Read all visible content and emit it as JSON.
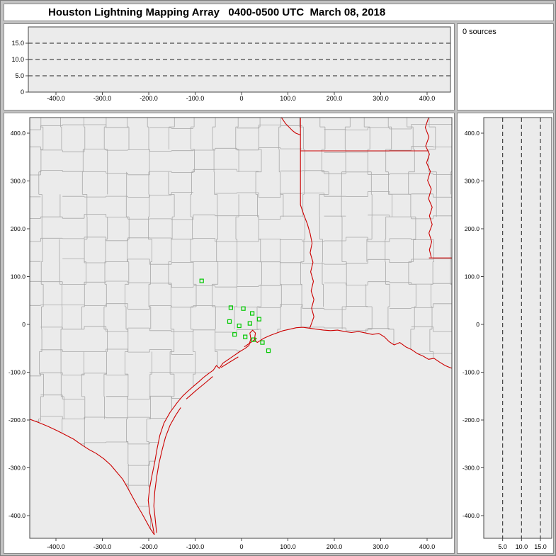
{
  "window": {
    "title": "Houston Lightning Mapping Array   0400-0500 UTC  March 08, 2018"
  },
  "panels": {
    "sources_counter": "0 sources"
  },
  "colors": {
    "window_bg": "#c2c2c2",
    "panel_bg": "#ffffff",
    "plot_bg": "#ebebeb",
    "axis": "#444444",
    "dash_line": "#222222",
    "county_line": "#a8a8a8",
    "state_line": "#cc0000",
    "station": "#00c800"
  },
  "chart_data": [
    {
      "id": "altitude_vs_ew",
      "type": "scatter",
      "title": "Altitude (km) vs East-West distance (km)",
      "x_ticks": [
        -400,
        -300,
        -200,
        -100,
        0,
        100,
        200,
        300,
        400
      ],
      "x_tick_labels": [
        "-400.0",
        "-300.0",
        "-200.0",
        "-100.0",
        "0",
        "100.0",
        "200.0",
        "300.0",
        "400.0"
      ],
      "x_range": [
        -456,
        452
      ],
      "y_ticks": [
        0,
        5,
        10,
        15
      ],
      "y_tick_labels": [
        "0",
        "5.0",
        "10.0",
        "15.0"
      ],
      "y_range": [
        0,
        20
      ],
      "dashed_gridlines_y": [
        5,
        10,
        15
      ],
      "points": []
    },
    {
      "id": "plan_view",
      "type": "scatter",
      "title": "Plan view map, km east-west vs km north-south",
      "x_ticks": [
        -400,
        -300,
        -200,
        -100,
        0,
        100,
        200,
        300,
        400
      ],
      "x_tick_labels": [
        "-400.0",
        "-300.0",
        "-200.0",
        "-100.0",
        "0",
        "100.0",
        "200.0",
        "300.0",
        "400.0"
      ],
      "x_range": [
        -456,
        452
      ],
      "y_ticks": [
        400,
        300,
        200,
        100,
        0,
        -100,
        -200,
        -300,
        -400
      ],
      "y_tick_labels": [
        "400.0",
        "300.0",
        "200.0",
        "100.0",
        "0",
        "-100.0",
        "-200.0",
        "-300.0",
        "-400.0"
      ],
      "y_range": [
        -447,
        432
      ],
      "map_layers": {
        "county_boundaries_color": "#a8a8a8",
        "state_borders_and_coast_color": "#cc0000"
      },
      "station_markers": {
        "shape": "open-square",
        "color": "#00c800",
        "points": [
          [
            -86,
            91
          ],
          [
            -23,
            35
          ],
          [
            4,
            33
          ],
          [
            23,
            23
          ],
          [
            -26,
            6
          ],
          [
            -5,
            -3
          ],
          [
            18,
            2
          ],
          [
            38,
            11
          ],
          [
            -15,
            -21
          ],
          [
            8,
            -26
          ],
          [
            26,
            -32
          ],
          [
            45,
            -38
          ],
          [
            58,
            -55
          ]
        ]
      },
      "source_points": []
    },
    {
      "id": "altitude_vs_ns",
      "type": "scatter",
      "title": "Altitude (km) vs North-South distance (km)",
      "x_ticks": [
        5,
        10,
        15
      ],
      "x_tick_labels": [
        "5.0",
        "10.0",
        "15.0"
      ],
      "x_range": [
        0,
        18
      ],
      "y_ticks": [
        400,
        300,
        200,
        100,
        0,
        -100,
        -200,
        -300,
        -400
      ],
      "y_tick_labels": [
        "400.0",
        "300.0",
        "200.0",
        "100.0",
        "0",
        "-100.0",
        "-200.0",
        "-300.0",
        "-400.0"
      ],
      "y_range": [
        -447,
        432
      ],
      "dashed_gridlines_x": [
        5,
        10,
        15
      ],
      "points": []
    }
  ]
}
